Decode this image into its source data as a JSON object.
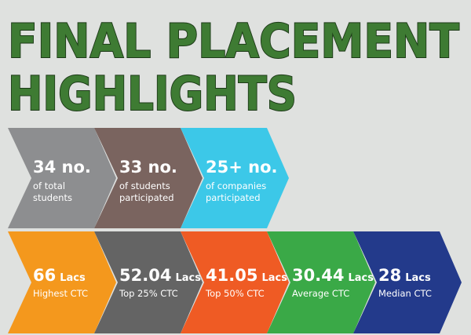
{
  "title": [
    "FINAL PLACEMENT",
    "HIGHLIGHTS"
  ],
  "row1": [
    {
      "value": "34 no.",
      "label": [
        "of total",
        "students"
      ]
    },
    {
      "value": "33 no.",
      "label": [
        "of students",
        "participated"
      ]
    },
    {
      "value": "25+ no.",
      "label": [
        "of companies",
        "participated"
      ]
    }
  ],
  "row2": [
    {
      "value": "66",
      "unit": "Lacs",
      "label": "Highest CTC"
    },
    {
      "value": "52.04",
      "unit": "Lacs",
      "label": "Top 25% CTC"
    },
    {
      "value": "41.05",
      "unit": "Lacs",
      "label": "Top 50% CTC"
    },
    {
      "value": "30.44",
      "unit": "Lacs",
      "label": "Average CTC"
    },
    {
      "value": "28",
      "unit": "Lacs",
      "label": "Median CTC"
    }
  ]
}
